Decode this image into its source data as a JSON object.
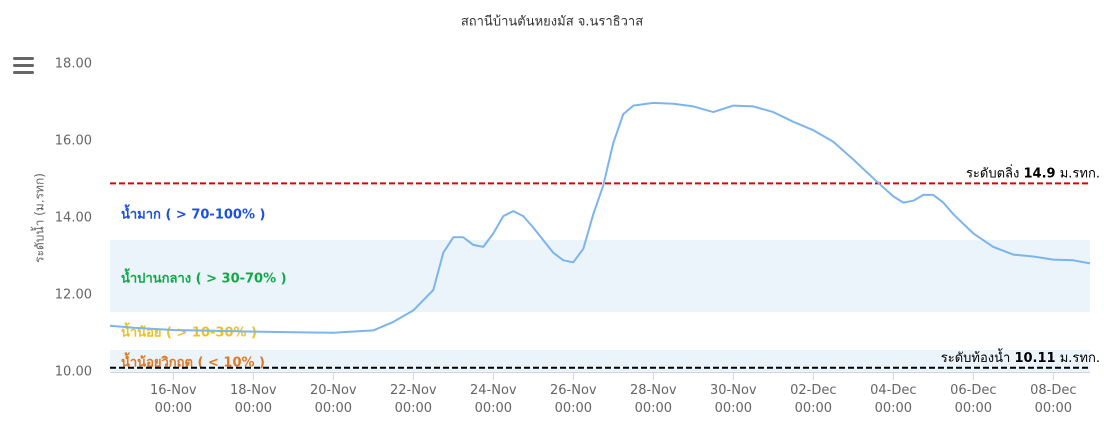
{
  "chart_data": {
    "type": "line",
    "title": "สถานีบ้านตันหยงมัส จ.นราธิวาส",
    "y_label": "ระดับน้ำ (ม.รทก)",
    "x": [
      "14-Nov 10:00",
      "15-Nov 00:00",
      "16-Nov 00:00",
      "17-Nov 00:00",
      "18-Nov 00:00",
      "19-Nov 00:00",
      "20-Nov 00:00",
      "21-Nov 00:00",
      "21-Nov 12:00",
      "22-Nov 00:00",
      "22-Nov 12:00",
      "22-Nov 18:00",
      "23-Nov 00:00",
      "23-Nov 06:00",
      "23-Nov 12:00",
      "23-Nov 18:00",
      "24-Nov 00:00",
      "24-Nov 06:00",
      "24-Nov 12:00",
      "24-Nov 18:00",
      "25-Nov 00:00",
      "25-Nov 06:00",
      "25-Nov 12:00",
      "25-Nov 18:00",
      "26-Nov 00:00",
      "26-Nov 06:00",
      "26-Nov 12:00",
      "26-Nov 18:00",
      "27-Nov 00:00",
      "27-Nov 06:00",
      "27-Nov 12:00",
      "28-Nov 00:00",
      "28-Nov 12:00",
      "29-Nov 00:00",
      "29-Nov 12:00",
      "30-Nov 00:00",
      "30-Nov 12:00",
      "01-Dec 00:00",
      "01-Dec 12:00",
      "02-Dec 00:00",
      "02-Dec 12:00",
      "03-Dec 00:00",
      "03-Dec 12:00",
      "04-Dec 00:00",
      "04-Dec 06:00",
      "04-Dec 12:00",
      "04-Dec 18:00",
      "05-Dec 00:00",
      "05-Dec 06:00",
      "05-Dec 12:00",
      "06-Dec 00:00",
      "06-Dec 12:00",
      "07-Dec 00:00",
      "07-Dec 12:00",
      "08-Dec 00:00",
      "08-Dec 12:00",
      "08-Dec 22:00"
    ],
    "series": [
      {
        "color": "#7cb5ec",
        "values": [
          11.2,
          11.15,
          11.09,
          11.07,
          11.05,
          11.03,
          11.02,
          11.08,
          11.3,
          11.6,
          12.13,
          13.1,
          13.5,
          13.5,
          13.3,
          13.25,
          13.6,
          14.05,
          14.18,
          14.05,
          13.75,
          13.42,
          13.1,
          12.9,
          12.85,
          13.2,
          14.1,
          14.85,
          15.95,
          16.7,
          16.92,
          16.99,
          16.97,
          16.9,
          16.75,
          16.92,
          16.9,
          16.75,
          16.5,
          16.28,
          15.98,
          15.52,
          15.03,
          14.56,
          14.4,
          14.45,
          14.6,
          14.6,
          14.4,
          14.1,
          13.6,
          13.25,
          13.05,
          13.0,
          12.92,
          12.9,
          12.82
        ]
      }
    ],
    "xlim": [
      "14-Nov 10:00",
      "08-Dec 22:00"
    ],
    "xticks": [
      "16-Nov 00:00",
      "18-Nov 00:00",
      "20-Nov 00:00",
      "22-Nov 00:00",
      "24-Nov 00:00",
      "26-Nov 00:00",
      "28-Nov 00:00",
      "30-Nov 00:00",
      "02-Dec 00:00",
      "04-Dec 00:00",
      "06-Dec 00:00",
      "08-Dec 00:00"
    ],
    "ylim": [
      10,
      18
    ],
    "yticks": [
      {
        "value": 10,
        "label": "10.00"
      },
      {
        "value": 12,
        "label": "12.00"
      },
      {
        "value": 14,
        "label": "14.00"
      },
      {
        "value": 16,
        "label": "16.00"
      },
      {
        "value": 18,
        "label": "18.00"
      }
    ],
    "plot_bands": [
      {
        "from": 10,
        "to": 10.57,
        "color": "#ebf3fb"
      },
      {
        "from": 11.56,
        "to": 13.43,
        "color": "#ebf3fb"
      }
    ],
    "plot_lines": [
      {
        "value": 14.9,
        "color": "#e00000",
        "prefix": "ระดับตลิ่ง",
        "suffix": "ม.รทก."
      },
      {
        "value": 10.11,
        "color": "#000000",
        "prefix": "ระดับท้องน้ำ",
        "suffix": "ม.รทก."
      }
    ],
    "zones": [
      {
        "label": "น้ำมาก ( > 70-100% )",
        "color": "#1e50e0"
      },
      {
        "label": "น้ำปานกลาง ( > 30-70% )",
        "color": "#12a84a"
      },
      {
        "label": "น้ำน้อย ( > 10-30% )",
        "color": "#f0c020"
      },
      {
        "label": "น้ำน้อยวิกฤต ( < 10% )",
        "color": "#e07820"
      }
    ]
  }
}
